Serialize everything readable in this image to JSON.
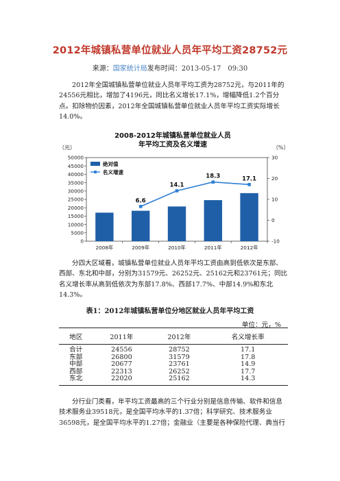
{
  "title": "2012年城镇私营单位就业人员年平均工资28752元",
  "source": {
    "prefix": "来源：",
    "link": "国家统计局",
    "time_label": "发布时间：",
    "datetime": "2013-05-17　09:30"
  },
  "paragraphs": [
    "2012年全国城镇私营单位就业人员年平均工资为28752元，与2011年的24556元相比，增加了4196元，同比名义增长17.1%，增幅降低1.2个百分点。扣除物价因素，2012年全国城镇私营单位就业人员年平均工资实际增长14.0%。",
    "分四大区域看，城镇私营单位就业人员年平均工资由高到低依次是东部、西部、东北和中部，分别为31579元、26252元、25162元和23761元；同比名义增长率从高到低依次为东部17.8%、西部17.7%、中部14.9%和东北14.3%。",
    "分行业门类看，年平均工资最高的三个行业分别是信息传输、软件和信息技术服务业39518元，是全国平均水平的1.37倍；科学研究、技术服务业36598元，是全国平均水平的1.27倍；金融业（主要是各种保险代理、典当行"
  ],
  "chart_data": {
    "type": "bar",
    "title": "2008-2012年城镇私营单位就业人员年平均工资及名义增速",
    "title_lines": [
      "2008-2012年城镇私营单位就业人员",
      "年平均工资及名义增速"
    ],
    "categories": [
      "2008年",
      "2009年",
      "2010年",
      "2011年",
      "2012年"
    ],
    "y_left_unit": "（元）",
    "y_right_unit": "（%）",
    "y_left_lim": [
      0,
      50000
    ],
    "y_left_ticks": [
      "0",
      "5000",
      "10000",
      "15000",
      "20000",
      "25000",
      "30000",
      "35000",
      "40000",
      "45000",
      "50000"
    ],
    "y_right_lim": [
      -10,
      30
    ],
    "y_right_ticks": [
      "-10",
      "0",
      "10",
      "20",
      "30"
    ],
    "legend_position": "top-left",
    "series": [
      {
        "name": "绝对值",
        "type": "bar",
        "axis": "left",
        "values": [
          17071,
          18199,
          20759,
          24556,
          28752
        ],
        "color": "#1f5fa8"
      },
      {
        "name": "名义增速",
        "type": "line",
        "axis": "right",
        "values": [
          null,
          6.6,
          14.1,
          18.3,
          17.1
        ],
        "labels": [
          "",
          "6.6",
          "14.1",
          "18.3",
          "17.1"
        ],
        "color": "#2e7fd6"
      }
    ]
  },
  "table": {
    "title": "表1：2012年城镇私营单位分地区就业人员年平均工资",
    "unit": "单位：元，%",
    "headers": [
      "地区",
      "2011年",
      "2012年",
      "名义增长率"
    ],
    "rows": [
      [
        "合计",
        "24556",
        "28752",
        "17.1"
      ],
      [
        "东部",
        "26800",
        "31579",
        "17.8"
      ],
      [
        "中部",
        "20677",
        "23761",
        "14.9"
      ],
      [
        "西部",
        "22313",
        "26252",
        "17.7"
      ],
      [
        "东北",
        "22020",
        "25162",
        "14.3"
      ]
    ]
  }
}
